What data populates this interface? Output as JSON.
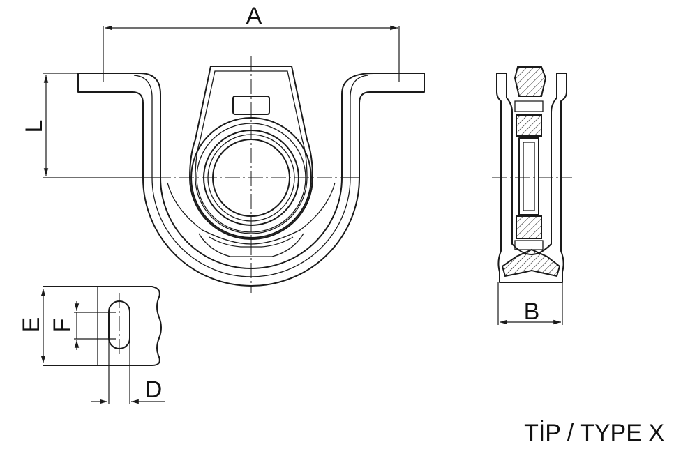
{
  "labels": {
    "A": "A",
    "L": "L",
    "B": "B",
    "E": "E",
    "F": "F",
    "D": "D"
  },
  "caption": "TİP / TYPE X"
}
